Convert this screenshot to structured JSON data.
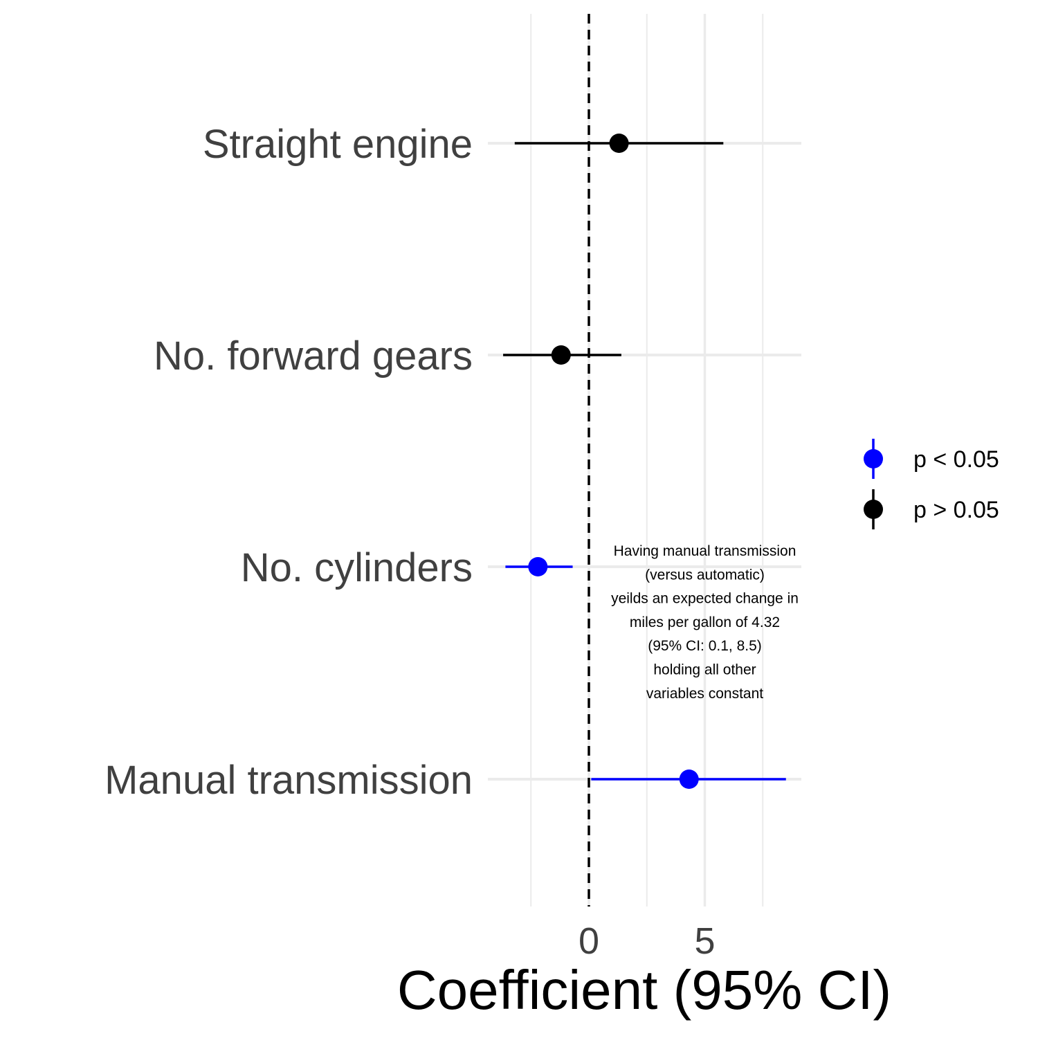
{
  "chart_data": {
    "type": "coefficient_plot",
    "xlabel": "Coefficient (95% CI)",
    "ylabel": "",
    "xlim": [
      -5,
      9.2
    ],
    "x_ticks": [
      0,
      5
    ],
    "x_grid_minor": [
      -2.5,
      2.5,
      7.5
    ],
    "grid": true,
    "reference_line": {
      "x": 0,
      "style": "dashed"
    },
    "terms": [
      {
        "label": "Straight engine",
        "estimate": 1.3,
        "ci_low": -3.2,
        "ci_high": 5.8,
        "group": "p > 0.05"
      },
      {
        "label": "No. forward gears",
        "estimate": -1.2,
        "ci_low": -3.7,
        "ci_high": 1.4,
        "group": "p > 0.05"
      },
      {
        "label": "No. cylinders",
        "estimate": -2.2,
        "ci_low": -3.6,
        "ci_high": -0.7,
        "group": "p < 0.05"
      },
      {
        "label": "Manual transmission",
        "estimate": 4.32,
        "ci_low": 0.1,
        "ci_high": 8.5,
        "group": "p < 0.05"
      }
    ],
    "legend": {
      "position": "right",
      "entries": [
        {
          "label": "p < 0.05",
          "color": "#0000ff"
        },
        {
          "label": "p > 0.05",
          "color": "#000000"
        }
      ]
    },
    "annotation": {
      "lines": [
        "Having manual transmission",
        "(versus automatic)",
        "yeilds an expected change in",
        "miles per gallon of 4.32",
        "(95% CI: 0.1, 8.5)",
        "holding all other",
        "variables constant"
      ],
      "x": 5,
      "near_term": "No. cylinders"
    }
  }
}
